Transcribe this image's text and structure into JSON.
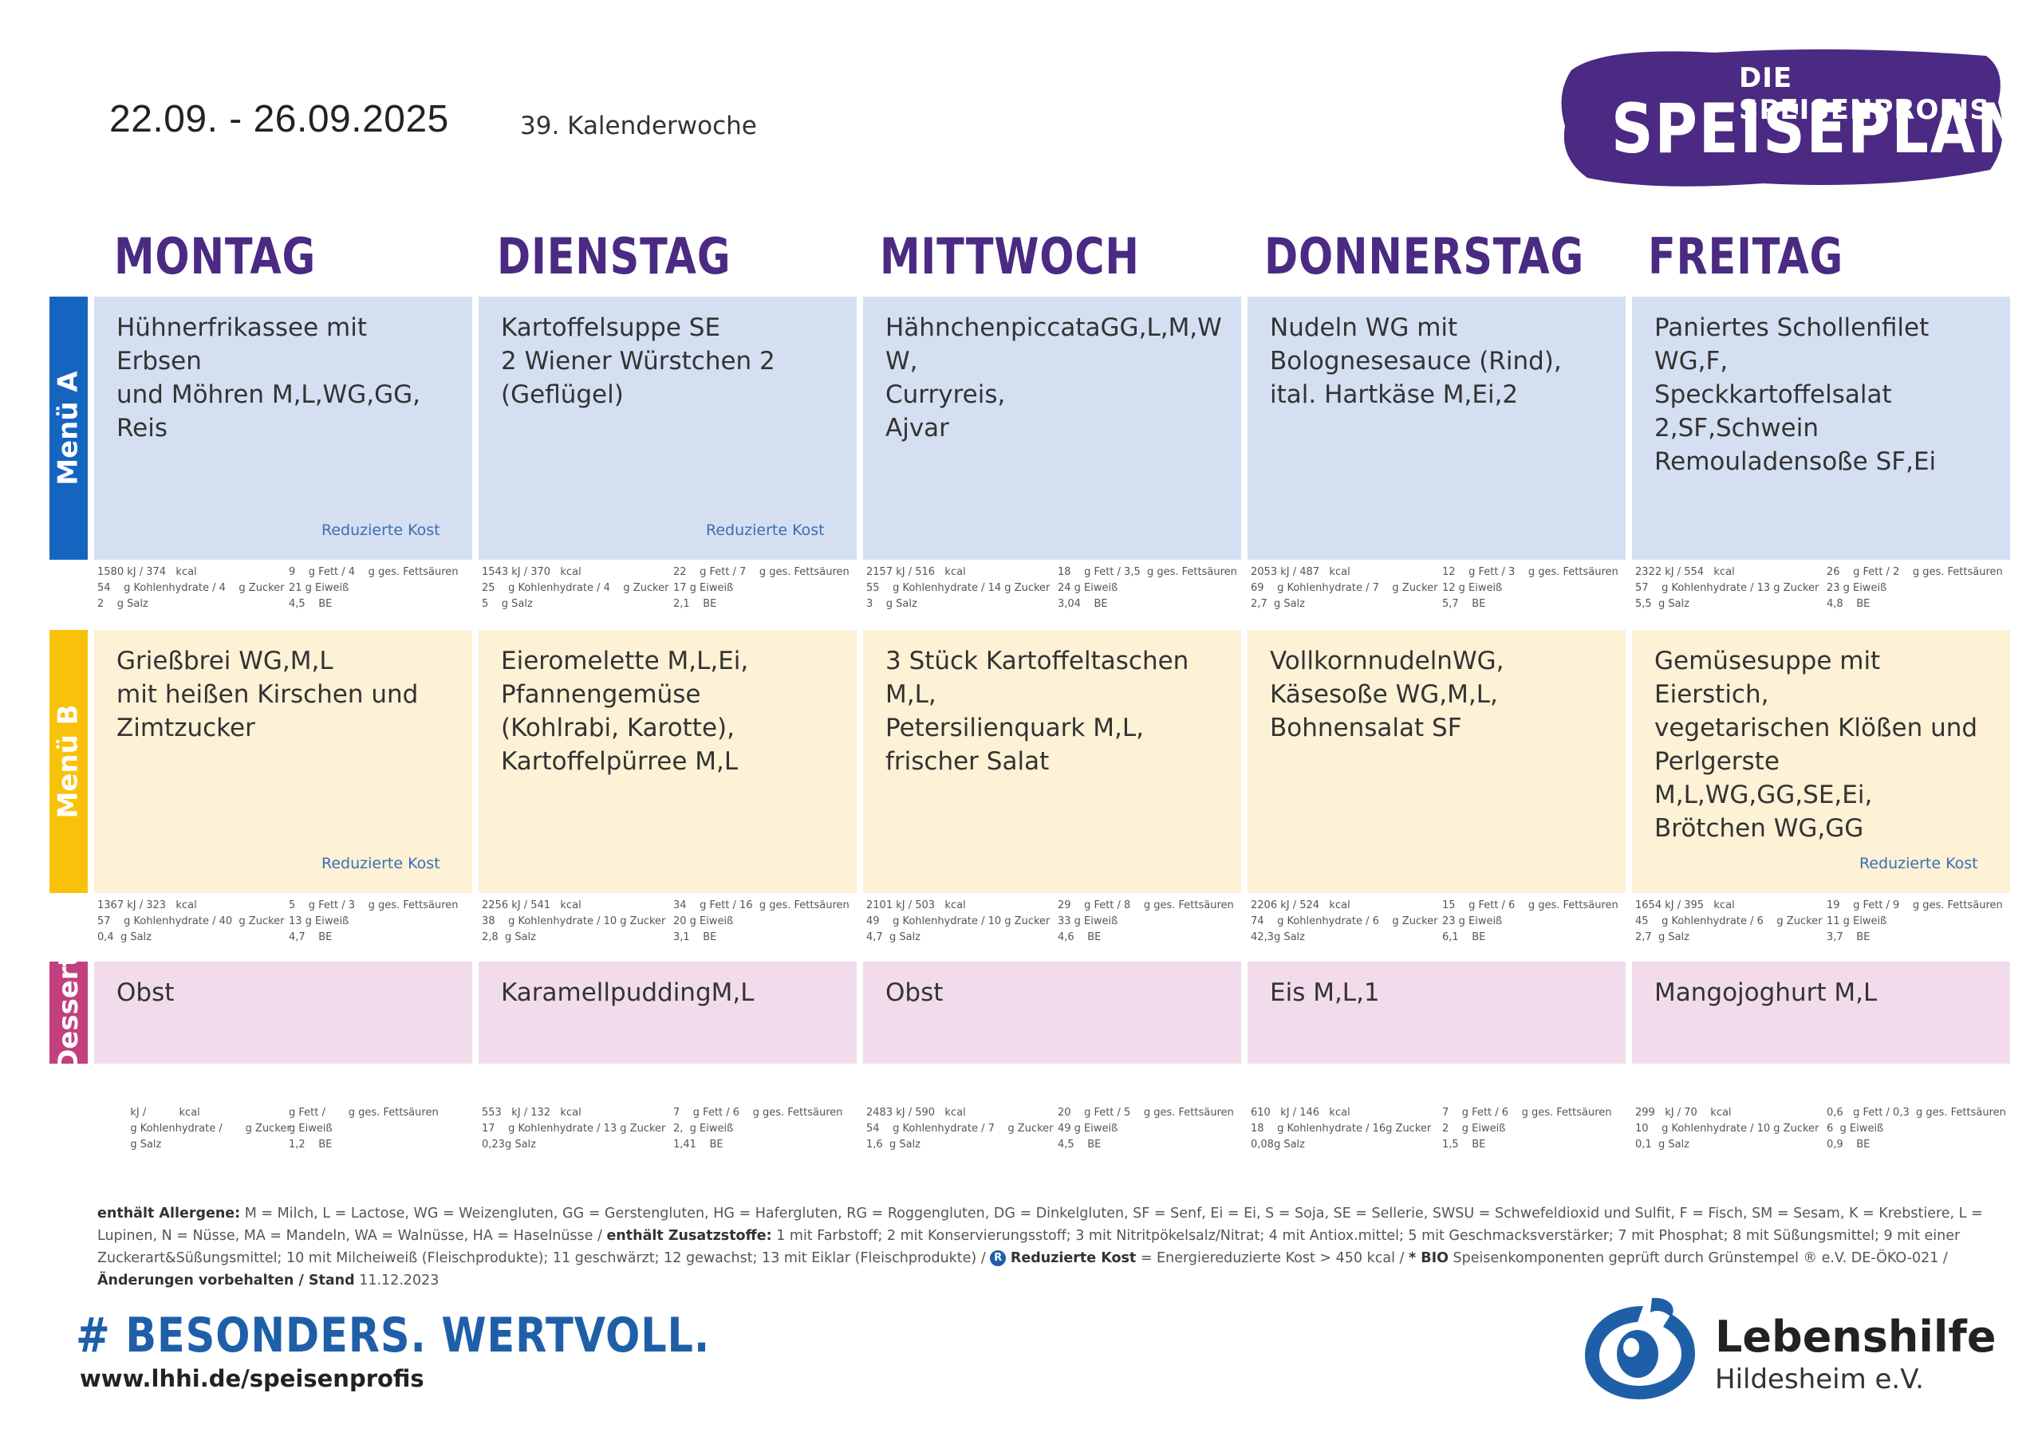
{
  "header": {
    "date_range": "22.09.  - 26.09.2025",
    "calendar_week": "39. Kalenderwoche",
    "brand_sub": "DIE SPEISENPROFIS",
    "brand_title": "SPEISEPLAN"
  },
  "days": [
    "MONTAG",
    "DIENSTAG",
    "MITTWOCH",
    "DONNERSTAG",
    "FREITAG"
  ],
  "rows": [
    {
      "label": "Menü A",
      "color": "#1565c0",
      "bg": "#d4dff2",
      "cells": [
        {
          "dish": "Hühnerfrikassee mit Erbsen\nund Möhren M,L,WG,GG,\nReis",
          "reduced": "Reduzierte Kost",
          "n1a": "1580 kJ / 374   kcal",
          "n1b": "9    g Fett / 4    g ges. Fettsäuren",
          "n2a": "54    g Kohlenhydrate / 4    g Zucker",
          "n2b": "21 g Eiweiß",
          "n3a": "2    g Salz",
          "n3b": "4,5    BE"
        },
        {
          "dish": "Kartoffelsuppe SE\n2 Wiener Würstchen 2\n(Geflügel)",
          "reduced": "Reduzierte Kost",
          "n1a": "1543 kJ / 370   kcal",
          "n1b": "22    g Fett / 7    g ges. Fettsäuren",
          "n2a": "25    g Kohlenhydrate / 4    g Zucker",
          "n2b": "17 g Eiweiß",
          "n3a": "5    g Salz",
          "n3b": "2,1    BE"
        },
        {
          "dish": "HähnchenpiccataGG,L,M,W\nW,\nCurryreis,\nAjvar",
          "reduced": "",
          "n1a": "2157 kJ / 516   kcal",
          "n1b": "18    g Fett / 3,5  g ges. Fettsäuren",
          "n2a": "55    g Kohlenhydrate / 14 g Zucker",
          "n2b": "24 g Eiweiß",
          "n3a": "3    g Salz",
          "n3b": "3,04    BE"
        },
        {
          "dish": "Nudeln WG mit\nBolognesesauce (Rind),\nital. Hartkäse M,Ei,2",
          "reduced": "",
          "n1a": "2053 kJ / 487   kcal",
          "n1b": "12    g Fett / 3    g ges. Fettsäuren",
          "n2a": "69    g Kohlenhydrate / 7    g Zucker",
          "n2b": "12 g Eiweiß",
          "n3a": "2,7  g Salz",
          "n3b": "5,7    BE"
        },
        {
          "dish": "Paniertes Schollenfilet\nWG,F,\nSpeckkartoffelsalat\n2,SF,Schwein\nRemouladensoße SF,Ei",
          "reduced": "",
          "n1a": "2322 kJ / 554   kcal",
          "n1b": "26    g Fett / 2    g ges. Fettsäuren",
          "n2a": "57    g Kohlenhydrate / 13 g Zucker",
          "n2b": "23 g Eiweiß",
          "n3a": "5,5  g Salz",
          "n3b": "4,8    BE"
        }
      ]
    },
    {
      "label": "Menü B",
      "color": "#f9c20a",
      "bg": "#fdf1d6",
      "cells": [
        {
          "dish": "Grießbrei WG,M,L\nmit heißen Kirschen und\nZimtzucker",
          "reduced": "Reduzierte Kost",
          "n1a": "1367 kJ / 323   kcal",
          "n1b": "5    g Fett / 3    g ges. Fettsäuren",
          "n2a": "57    g Kohlenhydrate / 40  g Zucker",
          "n2b": "13 g Eiweiß",
          "n3a": "0,4  g Salz",
          "n3b": "4,7    BE"
        },
        {
          "dish": "Eieromelette M,L,Ei,\nPfannengemüse\n(Kohlrabi, Karotte),\nKartoffelpürree M,L",
          "reduced": "",
          "n1a": "2256 kJ / 541   kcal",
          "n1b": "34    g Fett / 16  g ges. Fettsäuren",
          "n2a": "38    g Kohlenhydrate / 10 g Zucker",
          "n2b": "20 g Eiweiß",
          "n3a": "2,8  g Salz",
          "n3b": "3,1    BE"
        },
        {
          "dish": "3 Stück Kartoffeltaschen\nM,L,\nPetersilienquark M,L,\nfrischer Salat",
          "reduced": "",
          "n1a": "2101 kJ / 503   kcal",
          "n1b": "29    g Fett / 8    g ges. Fettsäuren",
          "n2a": "49    g Kohlenhydrate / 10 g Zucker",
          "n2b": "33 g Eiweiß",
          "n3a": "4,7  g Salz",
          "n3b": "4,6    BE"
        },
        {
          "dish": "VollkornnudelnWG,\nKäsesoße WG,M,L,\nBohnensalat SF",
          "reduced": "",
          "n1a": "2206 kJ / 524   kcal",
          "n1b": "15    g Fett / 6    g ges. Fettsäuren",
          "n2a": "74    g Kohlenhydrate / 6    g Zucker",
          "n2b": "23 g Eiweiß",
          "n3a": "42,3g Salz",
          "n3b": "6,1    BE"
        },
        {
          "dish": "Gemüsesuppe mit Eierstich,\nvegetarischen Klößen und\nPerlgerste M,L,WG,GG,SE,Ei,\nBrötchen WG,GG",
          "reduced": "Reduzierte Kost",
          "n1a": "1654 kJ / 395   kcal",
          "n1b": "19    g Fett / 9    g ges. Fettsäuren",
          "n2a": "45    g Kohlenhydrate / 6    g Zucker",
          "n2b": "11 g Eiweiß",
          "n3a": "2,7  g Salz",
          "n3b": "3,7    BE"
        }
      ]
    },
    {
      "label": "Dessert",
      "color": "#c2407e",
      "bg": "#f2dcec",
      "cells": [
        {
          "dish": "Obst",
          "reduced": "",
          "n1a": "          kJ /          kcal",
          "n1b": "g Fett /       g ges. Fettsäuren",
          "n2a": "          g Kohlenhydrate /       g Zucker",
          "n2b": "g Eiweiß",
          "n3a": "          g Salz",
          "n3b": "1,2    BE"
        },
        {
          "dish": " KaramellpuddingM,L",
          "reduced": "",
          "n1a": "553   kJ / 132   kcal",
          "n1b": "7    g Fett / 6    g ges. Fettsäuren",
          "n2a": "17    g Kohlenhydrate / 13 g Zucker",
          "n2b": "2,  g Eiweiß",
          "n3a": "0,23g Salz",
          "n3b": "1,41    BE"
        },
        {
          "dish": "Obst",
          "reduced": "",
          "n1a": "2483 kJ / 590   kcal",
          "n1b": "20    g Fett / 5    g ges. Fettsäuren",
          "n2a": "54    g Kohlenhydrate / 7    g Zucker",
          "n2b": "49 g Eiweiß",
          "n3a": "1,6  g Salz",
          "n3b": "4,5    BE"
        },
        {
          "dish": "Eis  M,L,1",
          "reduced": "",
          "n1a": "610   kJ / 146   kcal",
          "n1b": "7    g Fett / 6    g ges. Fettsäuren",
          "n2a": "18    g Kohlenhydrate / 16g Zucker",
          "n2b": "2    g Eiweiß",
          "n3a": "0,08g Salz",
          "n3b": "1,5    BE"
        },
        {
          "dish": "Mangojoghurt M,L",
          "reduced": "",
          "n1a": "299   kJ / 70    kcal",
          "n1b": "0,6   g Fett / 0,3  g ges. Fettsäuren",
          "n2a": "10    g Kohlenhydrate / 10 g Zucker",
          "n2b": "6  g Eiweiß",
          "n3a": "0,1  g Salz",
          "n3b": "0,9    BE"
        }
      ]
    }
  ],
  "footer": {
    "allergens_label": "enthält Allergene:",
    "allergens_text": " M = Milch, L = Lactose, WG = Weizengluten, GG = Gerstengluten, HG = Hafergluten, RG = Roggengluten, DG = Dinkelgluten, SF = Senf, Ei = Ei, S = Soja, SE = Sellerie, SWSU = Schwefeldioxid und Sulfit, F = Fisch, SM = Sesam, K = Krebstiere, L = Lupinen, N = Nüsse, MA = Mandeln, WA = Walnüsse, HA =  Haselnüsse / ",
    "additives_label": "enthält Zusatzstoffe:",
    "additives_text": " 1 mit Farbstoff; 2 mit Konservierungsstoff; 3 mit Nitritpökelsalz/Nitrat; 4 mit Antiox.mittel; 5 mit Geschmacksverstärker; 7 mit Phosphat; 8 mit Süßungsmittel; 9 mit einer Zuckerart&Süßungsmittel; 10 mit Milcheiweiß (Fleischprodukte); 11 geschwärzt; 12 gewachst; 13 mit Eiklar (Fleischprodukte) / ",
    "r_badge": "R",
    "reduced_label": "Reduzierte Kost",
    "reduced_text": " = Energiereduzierte Kost > 450 kcal / ",
    "bio_label": "* BIO",
    "bio_text": " Speisenkomponenten geprüft durch Grünstempel ® e.V. DE-ÖKO-021 / ",
    "changes_label": "Änderungen vorbehalten / Stand",
    "stand_date": "  11.12.2023",
    "hashtag": "# BESONDERS. WERTVOLL.",
    "url": "www.lhhi.de/speisenprofis",
    "org_name": "Lebenshilfe",
    "org_sub": "Hildesheim e.V.",
    "brand_purple": "#4a2a82",
    "logo_blue": "#1e5fa8"
  }
}
